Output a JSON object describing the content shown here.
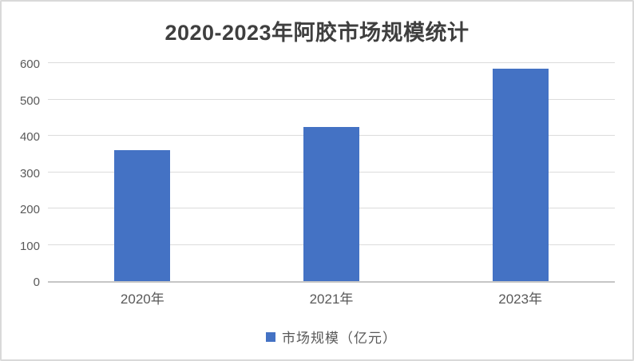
{
  "window": {
    "background": "#ffffff",
    "border_color": "#d9d9d9"
  },
  "chart_data": {
    "type": "bar",
    "title": "2020-2023年阿胶市场规模统计",
    "categories": [
      "2020年",
      "2021年",
      "2023年"
    ],
    "series": [
      {
        "name": "市场规模（亿元）",
        "values": [
          360,
          425,
          585
        ],
        "color": "#4472C4"
      }
    ],
    "xlabel": "",
    "ylabel": "",
    "ylim": [
      0,
      600
    ],
    "yticks": [
      0,
      100,
      200,
      300,
      400,
      500,
      600
    ],
    "grid": true,
    "legend_position": "bottom",
    "legend_marker": "square"
  },
  "colors": {
    "bar": "#4472C4",
    "gridline": "#dcdcdc",
    "axis_line": "#c6c6c6",
    "tick_label": "#595959",
    "title": "#3f3f3f"
  }
}
